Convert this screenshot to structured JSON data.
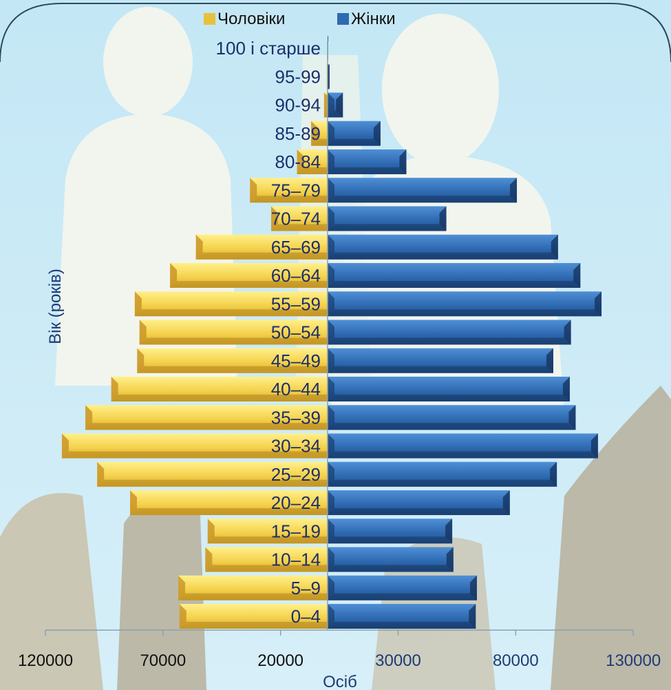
{
  "chart_data": {
    "type": "bar",
    "orientation": "horizontal",
    "layout": "population-pyramid",
    "xlabel": "Осіб",
    "ylabel": "Вік (років)",
    "categories": [
      "0–4",
      "5–9",
      "10–14",
      "15–19",
      "20–24",
      "25–29",
      "30–34",
      "35–39",
      "40–44",
      "45–49",
      "50–54",
      "55–59",
      "60–64",
      "65–69",
      "70–74",
      "75–79",
      "80-84",
      "85-89",
      "90-94",
      "95-99",
      "100 і старше"
    ],
    "series": [
      {
        "name": "Чоловіки",
        "color": "#F2CF4A",
        "values": [
          63000,
          63500,
          52000,
          51000,
          84000,
          98000,
          113000,
          103000,
          92000,
          81000,
          80000,
          82000,
          67000,
          56000,
          24000,
          33000,
          13000,
          7000,
          1500,
          300,
          100
        ]
      },
      {
        "name": "Жінки",
        "color": "#2E6AB1",
        "values": [
          63000,
          63500,
          53500,
          53000,
          77500,
          97500,
          115000,
          105500,
          103000,
          96000,
          103500,
          116500,
          107500,
          98000,
          50500,
          80500,
          33500,
          22500,
          6500,
          800,
          200
        ]
      }
    ],
    "x_ticks": [
      "120000",
      "70000",
      "20000",
      "30000",
      "80000",
      "130000"
    ],
    "xlim": [
      -120000,
      130000
    ],
    "legend": {
      "position": "top",
      "items": [
        "Чоловіки",
        "Жінки"
      ]
    }
  }
}
